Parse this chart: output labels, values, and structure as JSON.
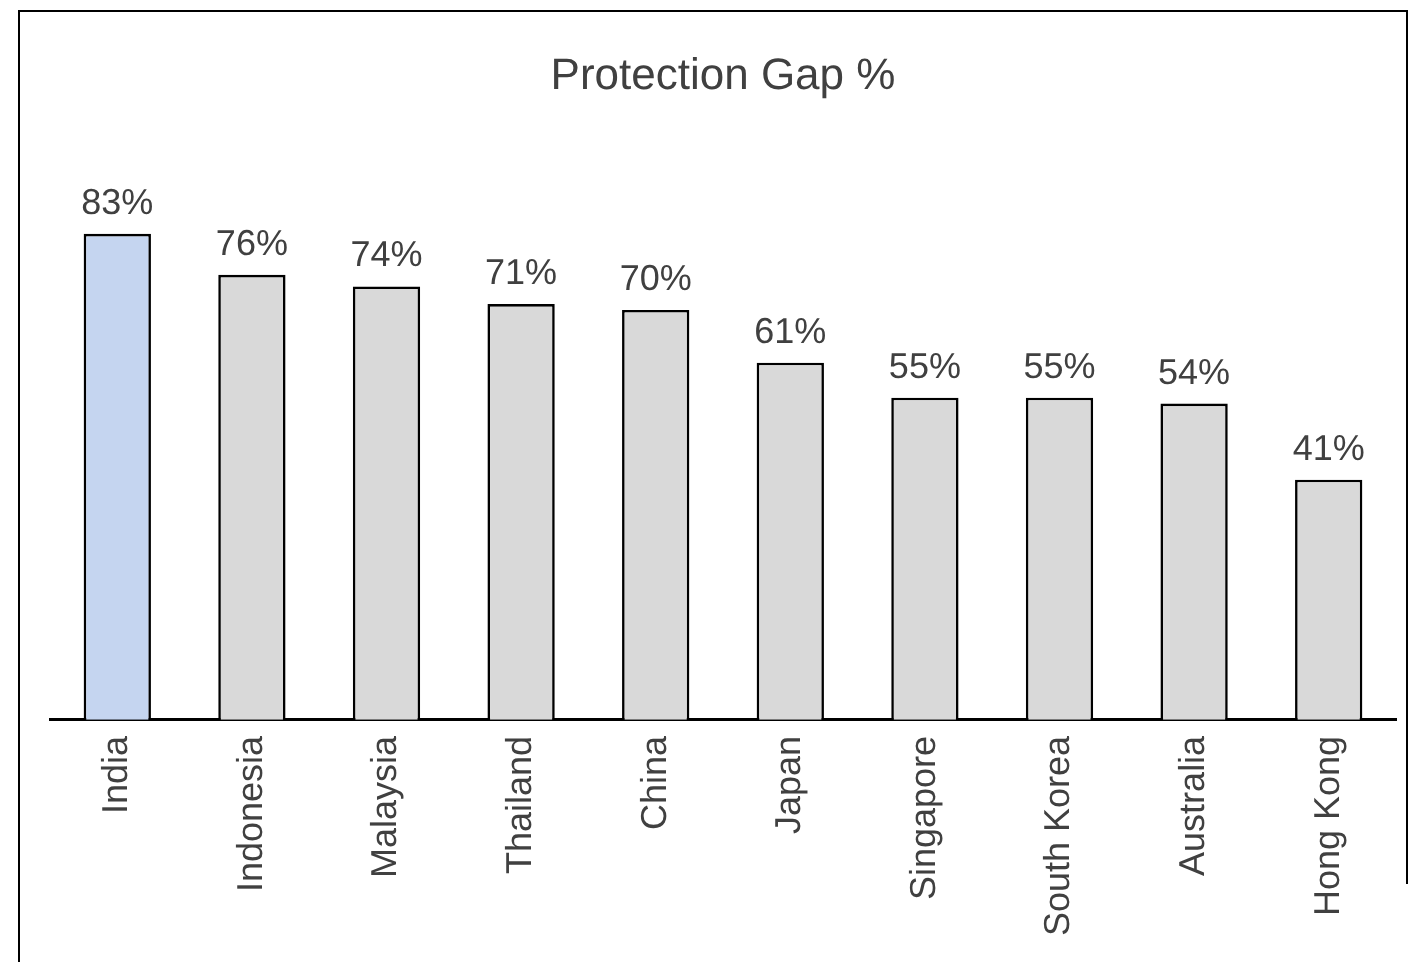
{
  "chart_data": {
    "type": "bar",
    "title": "Protection Gap %",
    "categories": [
      "India",
      "Indonesia",
      "Malaysia",
      "Thailand",
      "China",
      "Japan",
      "Singapore",
      "South Korea",
      "Australia",
      "Hong Kong"
    ],
    "values": [
      83,
      76,
      74,
      71,
      70,
      61,
      55,
      55,
      54,
      41
    ],
    "colors": [
      "#c5d5f0",
      "#d9d9d9",
      "#d9d9d9",
      "#d9d9d9",
      "#d9d9d9",
      "#d9d9d9",
      "#d9d9d9",
      "#d9d9d9",
      "#d9d9d9",
      "#d9d9d9"
    ],
    "value_labels": [
      "83%",
      "76%",
      "74%",
      "71%",
      "70%",
      "61%",
      "55%",
      "55%",
      "54%",
      "41%"
    ],
    "grid": false,
    "legend": false
  }
}
